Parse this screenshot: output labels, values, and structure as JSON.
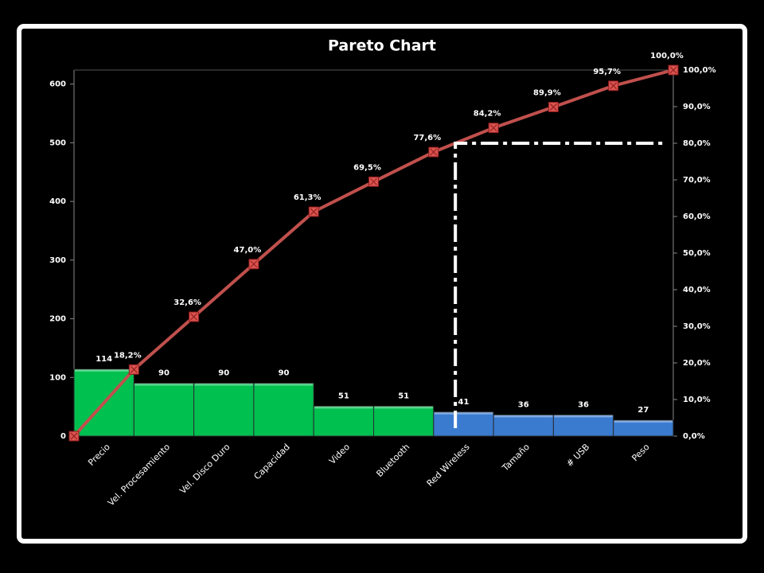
{
  "chart_data": {
    "type": "pareto",
    "title": "Pareto Chart",
    "categories": [
      "Precio",
      "Vel. Procesamiento",
      "Vel. Disco Duro",
      "Capacidad",
      "Video",
      "Bluetooth",
      "Red Wireless",
      "Tamaño",
      "# USB",
      "Peso"
    ],
    "series": [
      {
        "type": "bar",
        "colors": [
          "#00c050",
          "#00c050",
          "#00c050",
          "#00c050",
          "#00c050",
          "#00c050",
          "#3a7bd0",
          "#3a7bd0",
          "#3a7bd0",
          "#3a7bd0"
        ],
        "values": [
          114,
          90,
          90,
          90,
          51,
          51,
          41,
          36,
          36,
          27
        ]
      },
      {
        "type": "line",
        "axis": "y2",
        "color": "#c0504d",
        "values": [
          18.2,
          32.6,
          47.0,
          61.3,
          69.5,
          77.6,
          84.2,
          89.9,
          95.7,
          100.0
        ],
        "value_labels": [
          "18,2%",
          "32,6%",
          "47,0%",
          "61,3%",
          "69,5%",
          "77,6%",
          "84,2%",
          "89,9%",
          "95,7%",
          "100,0%"
        ]
      }
    ],
    "ylim": [
      0,
      624
    ],
    "yticks": [
      0,
      100,
      200,
      300,
      400,
      500,
      600
    ],
    "y2lim": [
      0,
      100
    ],
    "y2ticks": [
      {
        "value": 0,
        "label": "0,0%"
      },
      {
        "value": 10,
        "label": "10,0%"
      },
      {
        "value": 20,
        "label": "20,0%"
      },
      {
        "value": 30,
        "label": "30,0%"
      },
      {
        "value": 40,
        "label": "40,0%"
      },
      {
        "value": 50,
        "label": "50,0%"
      },
      {
        "value": 60,
        "label": "60,0%"
      },
      {
        "value": 70,
        "label": "70,0%"
      },
      {
        "value": 80,
        "label": "80,0%"
      },
      {
        "value": 90,
        "label": "90,0%"
      },
      {
        "value": 100,
        "label": "100,0%"
      }
    ],
    "threshold": 80
  }
}
